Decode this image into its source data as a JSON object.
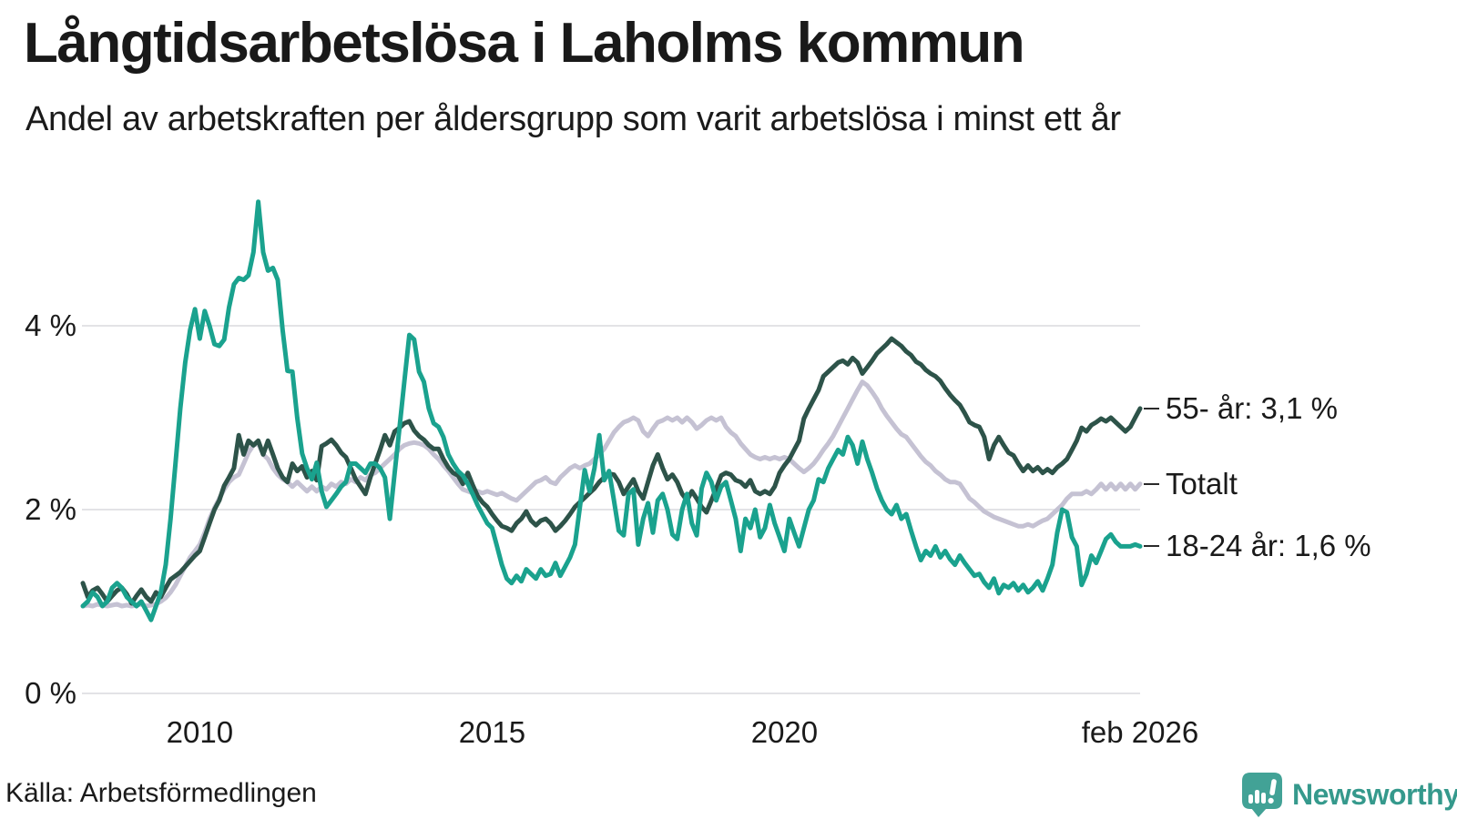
{
  "header": {
    "title": "Långtidsarbetslösa i Laholms kommun",
    "subtitle": "Andel av arbetskraften per åldersgrupp som varit arbetslösa i minst ett år"
  },
  "footer": {
    "source": "Källa: Arbetsförmedlingen",
    "brand": "Newsworthy"
  },
  "colors": {
    "teal": "#1aa28e",
    "dark_green": "#2d5349",
    "gray": "#c5c2d3",
    "grid": "#e3e3e6",
    "text": "#1a1a1a",
    "logo": "#42a296"
  },
  "chart_data": {
    "type": "line",
    "title": "Långtidsarbetslösa i Laholms kommun",
    "subtitle": "Andel av arbetskraften per åldersgrupp som varit arbetslösa i minst ett år",
    "unit": "%",
    "frequency": "monthly",
    "x_start": 2008.0,
    "x_end": 2026.0833,
    "grid": true,
    "legend_position": "end-of-line-labels-right",
    "x_axis": {
      "range": [
        2008.0,
        2026.0833
      ],
      "ticks": [
        {
          "label": "2010",
          "t": 2010
        },
        {
          "label": "2015",
          "t": 2015
        },
        {
          "label": "2020",
          "t": 2020
        },
        {
          "label": "feb 2026",
          "t": 2026.0833
        }
      ]
    },
    "y_axis": {
      "range": [
        0,
        5.6
      ],
      "unit": "%",
      "ticks": [
        {
          "label": "0 %",
          "v": 0
        },
        {
          "label": "2 %",
          "v": 2
        },
        {
          "label": "4 %",
          "v": 4
        }
      ]
    },
    "series": [
      {
        "name": "55- år",
        "end_label": "55- år: 3,1 %",
        "last_value": 3.1,
        "color": "#2d5349",
        "values": [
          1.2,
          1.05,
          1.12,
          1.15,
          1.08,
          1.0,
          1.06,
          1.12,
          1.15,
          1.08,
          0.98,
          1.06,
          1.13,
          1.05,
          1.0,
          1.1,
          1.05,
          1.15,
          1.24,
          1.28,
          1.32,
          1.38,
          1.44,
          1.5,
          1.55,
          1.7,
          1.85,
          2.0,
          2.1,
          2.26,
          2.35,
          2.45,
          2.81,
          2.6,
          2.75,
          2.7,
          2.75,
          2.6,
          2.75,
          2.6,
          2.45,
          2.35,
          2.3,
          2.5,
          2.42,
          2.47,
          2.35,
          2.42,
          2.32,
          2.69,
          2.72,
          2.76,
          2.7,
          2.62,
          2.57,
          2.45,
          2.33,
          2.25,
          2.17,
          2.35,
          2.5,
          2.65,
          2.81,
          2.7,
          2.85,
          2.89,
          2.94,
          2.96,
          2.86,
          2.8,
          2.76,
          2.7,
          2.66,
          2.66,
          2.55,
          2.46,
          2.4,
          2.37,
          2.28,
          2.4,
          2.27,
          2.15,
          2.08,
          2.03,
          1.95,
          1.88,
          1.82,
          1.8,
          1.77,
          1.85,
          1.9,
          1.98,
          1.88,
          1.83,
          1.88,
          1.9,
          1.85,
          1.77,
          1.82,
          1.88,
          1.95,
          2.03,
          2.08,
          2.13,
          2.18,
          2.23,
          2.3,
          2.35,
          2.39,
          2.38,
          2.3,
          2.17,
          2.25,
          2.33,
          2.2,
          2.12,
          2.3,
          2.48,
          2.6,
          2.45,
          2.33,
          2.38,
          2.3,
          2.17,
          2.1,
          2.2,
          2.12,
          2.03,
          1.97,
          2.1,
          2.23,
          2.37,
          2.4,
          2.38,
          2.32,
          2.3,
          2.25,
          2.32,
          2.2,
          2.17,
          2.2,
          2.17,
          2.25,
          2.4,
          2.48,
          2.55,
          2.65,
          2.75,
          2.99,
          3.1,
          3.2,
          3.3,
          3.45,
          3.5,
          3.55,
          3.6,
          3.62,
          3.58,
          3.65,
          3.6,
          3.48,
          3.55,
          3.62,
          3.7,
          3.75,
          3.8,
          3.86,
          3.82,
          3.78,
          3.72,
          3.68,
          3.61,
          3.58,
          3.52,
          3.48,
          3.45,
          3.4,
          3.32,
          3.25,
          3.19,
          3.14,
          3.05,
          2.95,
          2.92,
          2.9,
          2.79,
          2.55,
          2.7,
          2.79,
          2.7,
          2.62,
          2.59,
          2.5,
          2.42,
          2.48,
          2.42,
          2.46,
          2.4,
          2.44,
          2.4,
          2.46,
          2.5,
          2.55,
          2.65,
          2.75,
          2.89,
          2.85,
          2.92,
          2.95,
          2.99,
          2.96,
          3.0,
          2.95,
          2.9,
          2.85,
          2.9,
          3.0,
          3.1
        ]
      },
      {
        "name": "Totalt",
        "end_label": "Totalt",
        "last_value": 2.3,
        "color": "#c5c2d3",
        "values": [
          0.95,
          0.96,
          0.95,
          0.97,
          0.96,
          0.95,
          0.96,
          0.97,
          0.95,
          0.96,
          0.95,
          0.96,
          0.97,
          0.95,
          0.96,
          0.97,
          1.0,
          1.04,
          1.1,
          1.18,
          1.28,
          1.38,
          1.48,
          1.55,
          1.62,
          1.75,
          1.9,
          2.02,
          2.12,
          2.22,
          2.3,
          2.35,
          2.38,
          2.5,
          2.62,
          2.7,
          2.72,
          2.6,
          2.55,
          2.45,
          2.38,
          2.33,
          2.3,
          2.25,
          2.3,
          2.25,
          2.2,
          2.25,
          2.2,
          2.25,
          2.22,
          2.28,
          2.25,
          2.3,
          2.28,
          2.33,
          2.3,
          2.35,
          2.32,
          2.38,
          2.4,
          2.45,
          2.5,
          2.55,
          2.6,
          2.66,
          2.7,
          2.72,
          2.73,
          2.72,
          2.7,
          2.66,
          2.6,
          2.55,
          2.48,
          2.42,
          2.35,
          2.28,
          2.22,
          2.2,
          2.18,
          2.2,
          2.18,
          2.2,
          2.18,
          2.16,
          2.18,
          2.15,
          2.12,
          2.1,
          2.15,
          2.2,
          2.25,
          2.3,
          2.32,
          2.35,
          2.3,
          2.28,
          2.35,
          2.4,
          2.45,
          2.48,
          2.45,
          2.48,
          2.5,
          2.55,
          2.6,
          2.66,
          2.75,
          2.84,
          2.9,
          2.95,
          2.97,
          3.0,
          2.97,
          2.85,
          2.8,
          2.88,
          2.95,
          2.97,
          3.0,
          2.97,
          3.0,
          2.95,
          3.0,
          2.95,
          2.88,
          2.92,
          2.97,
          3.0,
          2.97,
          3.0,
          2.9,
          2.84,
          2.8,
          2.72,
          2.66,
          2.6,
          2.57,
          2.55,
          2.57,
          2.55,
          2.57,
          2.55,
          2.57,
          2.55,
          2.5,
          2.45,
          2.41,
          2.45,
          2.5,
          2.57,
          2.65,
          2.72,
          2.8,
          2.9,
          3.0,
          3.1,
          3.2,
          3.3,
          3.39,
          3.35,
          3.28,
          3.2,
          3.1,
          3.02,
          2.95,
          2.88,
          2.82,
          2.79,
          2.72,
          2.65,
          2.58,
          2.52,
          2.48,
          2.42,
          2.38,
          2.33,
          2.3,
          2.3,
          2.28,
          2.2,
          2.12,
          2.08,
          2.03,
          1.98,
          1.95,
          1.92,
          1.9,
          1.88,
          1.86,
          1.84,
          1.82,
          1.82,
          1.84,
          1.82,
          1.85,
          1.88,
          1.9,
          1.95,
          2.0,
          2.05,
          2.12,
          2.17,
          2.17,
          2.17,
          2.2,
          2.17,
          2.22,
          2.28,
          2.22,
          2.28,
          2.22,
          2.28,
          2.22,
          2.28,
          2.22,
          2.28
        ]
      },
      {
        "name": "18-24 år",
        "end_label": "18-24 år: 1,6 %",
        "last_value": 1.6,
        "color": "#1aa28e",
        "values": [
          0.95,
          1.0,
          1.1,
          1.05,
          0.95,
          1.0,
          1.15,
          1.2,
          1.15,
          1.05,
          1.0,
          0.95,
          1.0,
          0.9,
          0.8,
          0.95,
          1.1,
          1.4,
          1.9,
          2.5,
          3.1,
          3.6,
          3.95,
          4.18,
          3.86,
          4.16,
          4.0,
          3.8,
          3.78,
          3.85,
          4.2,
          4.45,
          4.52,
          4.5,
          4.55,
          4.8,
          5.35,
          4.8,
          4.6,
          4.63,
          4.5,
          3.95,
          3.51,
          3.5,
          3.0,
          2.61,
          2.45,
          2.33,
          2.51,
          2.2,
          2.03,
          2.1,
          2.17,
          2.25,
          2.3,
          2.5,
          2.5,
          2.45,
          2.4,
          2.5,
          2.5,
          2.45,
          2.35,
          1.9,
          2.4,
          2.9,
          3.4,
          3.9,
          3.85,
          3.5,
          3.39,
          3.1,
          2.94,
          2.9,
          2.79,
          2.6,
          2.5,
          2.42,
          2.37,
          2.28,
          2.17,
          2.05,
          1.95,
          1.85,
          1.8,
          1.6,
          1.4,
          1.25,
          1.2,
          1.28,
          1.22,
          1.35,
          1.3,
          1.25,
          1.35,
          1.28,
          1.3,
          1.42,
          1.28,
          1.38,
          1.48,
          1.62,
          2.02,
          2.43,
          2.2,
          2.45,
          2.81,
          2.32,
          2.42,
          2.1,
          1.77,
          1.72,
          2.17,
          2.22,
          1.62,
          1.9,
          2.07,
          1.75,
          2.1,
          2.17,
          2.0,
          1.73,
          1.68,
          2.0,
          2.17,
          1.85,
          1.72,
          2.23,
          2.4,
          2.3,
          2.1,
          2.25,
          2.3,
          2.1,
          1.9,
          1.55,
          1.9,
          1.8,
          2.0,
          1.7,
          1.8,
          2.05,
          1.85,
          1.7,
          1.55,
          1.9,
          1.75,
          1.6,
          1.8,
          2.0,
          2.1,
          2.33,
          2.3,
          2.45,
          2.55,
          2.65,
          2.6,
          2.79,
          2.7,
          2.5,
          2.74,
          2.55,
          2.4,
          2.23,
          2.1,
          2.0,
          1.95,
          2.05,
          1.9,
          1.95,
          1.77,
          1.6,
          1.45,
          1.55,
          1.5,
          1.6,
          1.48,
          1.55,
          1.46,
          1.4,
          1.5,
          1.42,
          1.35,
          1.28,
          1.3,
          1.21,
          1.15,
          1.25,
          1.09,
          1.18,
          1.15,
          1.2,
          1.12,
          1.18,
          1.1,
          1.15,
          1.22,
          1.12,
          1.25,
          1.4,
          1.75,
          2.0,
          1.97,
          1.7,
          1.6,
          1.18,
          1.3,
          1.5,
          1.42,
          1.55,
          1.68,
          1.73,
          1.65,
          1.6,
          1.6,
          1.6,
          1.62,
          1.6
        ]
      }
    ]
  }
}
